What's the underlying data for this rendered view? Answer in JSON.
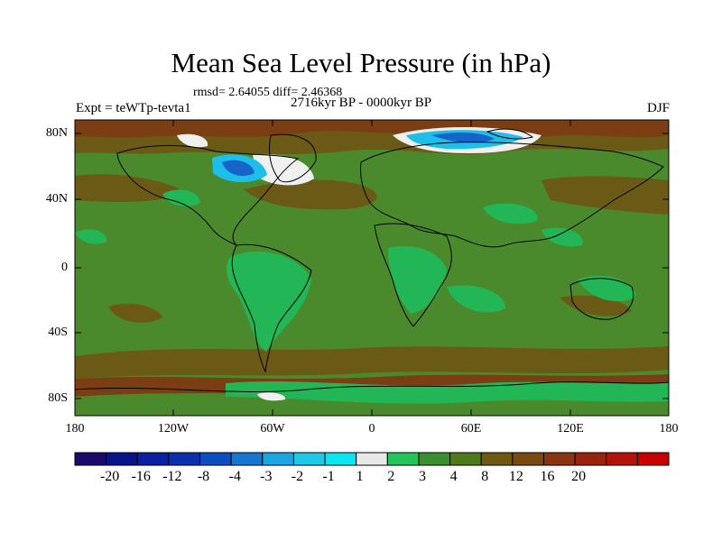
{
  "title": "Mean Sea Level Pressure (in hPa)",
  "stats_line": "rmsd= 2.64055 diff= 2.46368",
  "period": "2716kyr BP - 0000kyr BP",
  "experiment": "Expt = teWTp-tevta1",
  "season": "DJF",
  "lat_labels": [
    "80N",
    "40N",
    "0",
    "40S",
    "80S"
  ],
  "lon_labels": [
    "180",
    "120W",
    "60W",
    "0",
    "60E",
    "120E",
    "180"
  ],
  "colorbar": {
    "labels": [
      "-20",
      "-16",
      "-12",
      "-8",
      "-4",
      "-3",
      "-2",
      "-1",
      "1",
      "2",
      "3",
      "4",
      "8",
      "12",
      "16",
      "20"
    ],
    "colors": [
      "#1a0a6b",
      "#0a148a",
      "#0a1fa3",
      "#0a30b0",
      "#0a4ec0",
      "#1478d2",
      "#1aa6e0",
      "#20c8e8",
      "#0ae6f0",
      "#e8e8e8",
      "#22c45c",
      "#3a8f2e",
      "#4f7a1a",
      "#6b5a10",
      "#7a4a0e",
      "#8a3410",
      "#9a220c",
      "#b31208",
      "#c80000"
    ]
  },
  "map_colors": {
    "base": "#4a8a2c",
    "ocean_pos": "#6b5a16",
    "strong_pos": "#7a3e12",
    "near_zero": "#22b657",
    "cyan": "#1ebeea",
    "blue": "#1764c8",
    "white": "#f0f0f0"
  }
}
